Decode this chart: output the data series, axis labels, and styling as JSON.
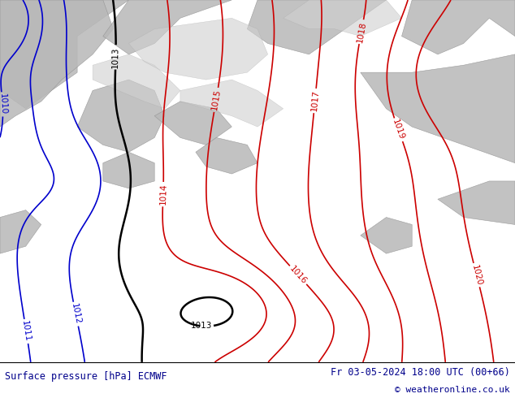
{
  "title_left": "Surface pressure [hPa] ECMWF",
  "title_right": "Fr 03-05-2024 18:00 UTC (00+66)",
  "copyright": "© weatheronline.co.uk",
  "footer_text_color": "#00008b",
  "contour_colors": {
    "black": "#000000",
    "red": "#cc0000",
    "blue": "#0000cc"
  },
  "figsize": [
    6.34,
    4.9
  ],
  "dpi": 100,
  "green_bg": "#9ed46a",
  "grey_land": "#b4b4b4",
  "white_sea": "#d8d8d8"
}
